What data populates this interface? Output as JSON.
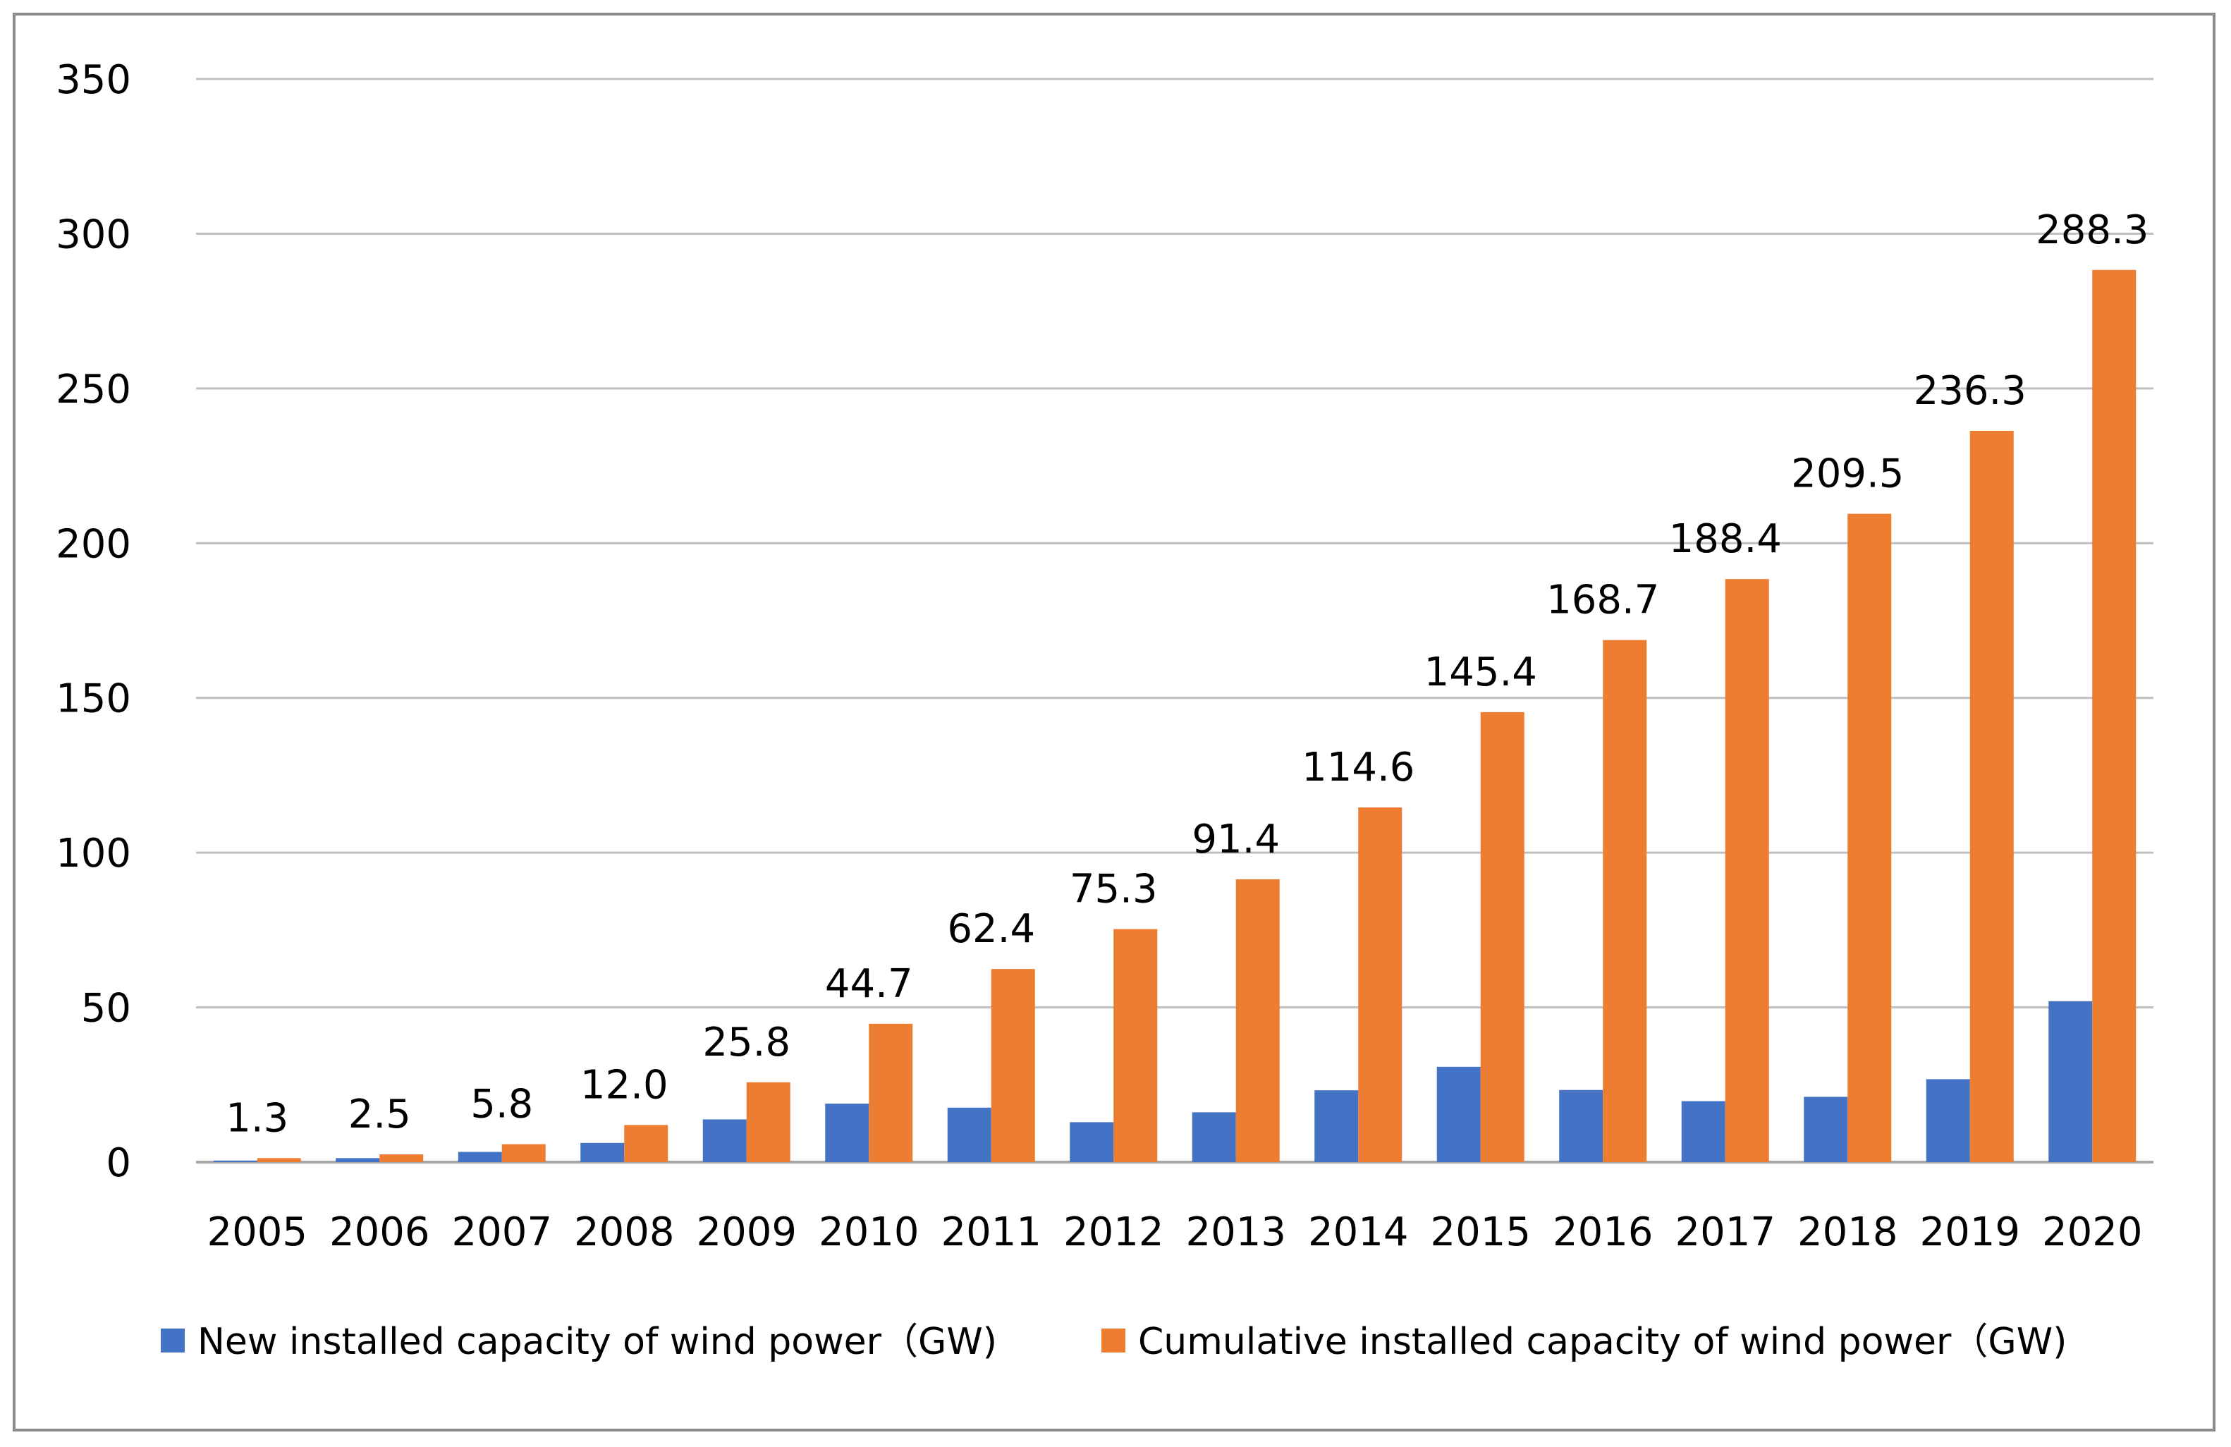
{
  "chart_data": {
    "type": "bar",
    "categories": [
      "2005",
      "2006",
      "2007",
      "2008",
      "2009",
      "2010",
      "2011",
      "2012",
      "2013",
      "2014",
      "2015",
      "2016",
      "2017",
      "2018",
      "2019",
      "2020"
    ],
    "series": [
      {
        "name": "New installed capacity of wind power（GW)",
        "color": "#4472C4",
        "values": [
          0.5,
          1.3,
          3.3,
          6.2,
          13.8,
          18.9,
          17.6,
          12.9,
          16.1,
          23.2,
          30.8,
          23.3,
          19.7,
          21.1,
          26.8,
          52.0
        ]
      },
      {
        "name": "Cumulative installed capacity of wind power（GW)",
        "color": "#ED7D31",
        "values": [
          1.3,
          2.5,
          5.8,
          12.0,
          25.8,
          44.7,
          62.4,
          75.3,
          91.4,
          114.6,
          145.4,
          168.7,
          188.4,
          209.5,
          236.3,
          288.3
        ],
        "data_labels": [
          "1.3",
          "2.5",
          "5.8",
          "12.0",
          "25.8",
          "44.7",
          "62.4",
          "75.3",
          "91.4",
          "114.6",
          "145.4",
          "168.7",
          "188.4",
          "209.5",
          "236.3",
          "288.3"
        ]
      }
    ],
    "y_ticks": [
      "0",
      "50",
      "100",
      "150",
      "200",
      "250",
      "300",
      "350"
    ],
    "ylim": [
      0,
      350
    ],
    "grid": true,
    "legend_position": "bottom"
  }
}
